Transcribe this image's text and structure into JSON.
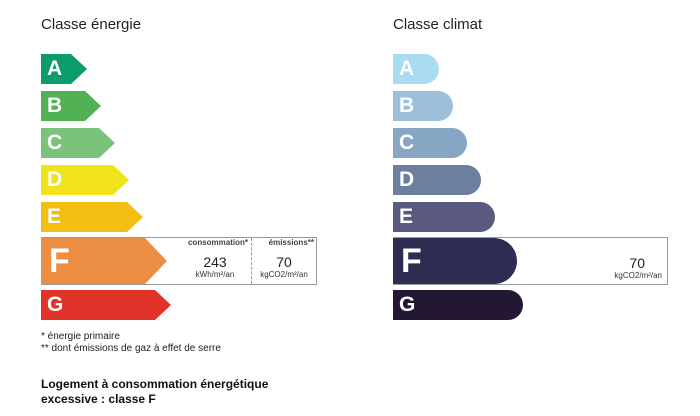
{
  "energie": {
    "title": "Classe énergie",
    "classes": [
      {
        "letter": "A",
        "color": "#0c9c6c"
      },
      {
        "letter": "B",
        "color": "#52b153"
      },
      {
        "letter": "C",
        "color": "#7bc27a"
      },
      {
        "letter": "D",
        "color": "#f0e31a"
      },
      {
        "letter": "E",
        "color": "#f3bd12"
      },
      {
        "letter": "F",
        "color": "#eb8d43"
      },
      {
        "letter": "G",
        "color": "#e2332a"
      }
    ],
    "consumption_header": "consommation*",
    "consumption_value": "243",
    "consumption_unit": "kWh/m²/an",
    "emissions_header": "émissions**",
    "emissions_value": "70",
    "emissions_unit": "kgCO2/m²/an"
  },
  "climat": {
    "title": "Classe climat",
    "classes": [
      {
        "letter": "A",
        "color": "#a9dbf3"
      },
      {
        "letter": "B",
        "color": "#9cc0dc"
      },
      {
        "letter": "C",
        "color": "#86a6c3"
      },
      {
        "letter": "D",
        "color": "#6d7f9f"
      },
      {
        "letter": "E",
        "color": "#5a5a7e"
      },
      {
        "letter": "F",
        "color": "#2e2c52"
      },
      {
        "letter": "G",
        "color": "#231733"
      }
    ],
    "emissions_value": "70",
    "emissions_unit": "kgCO2/m²/an"
  },
  "notes": {
    "primary": "* énergie primaire",
    "gas": "** dont émissions de gaz à effet de serre"
  },
  "verdict": {
    "line1": "Logement à consommation énergétique",
    "line2": "excessive : classe F"
  }
}
